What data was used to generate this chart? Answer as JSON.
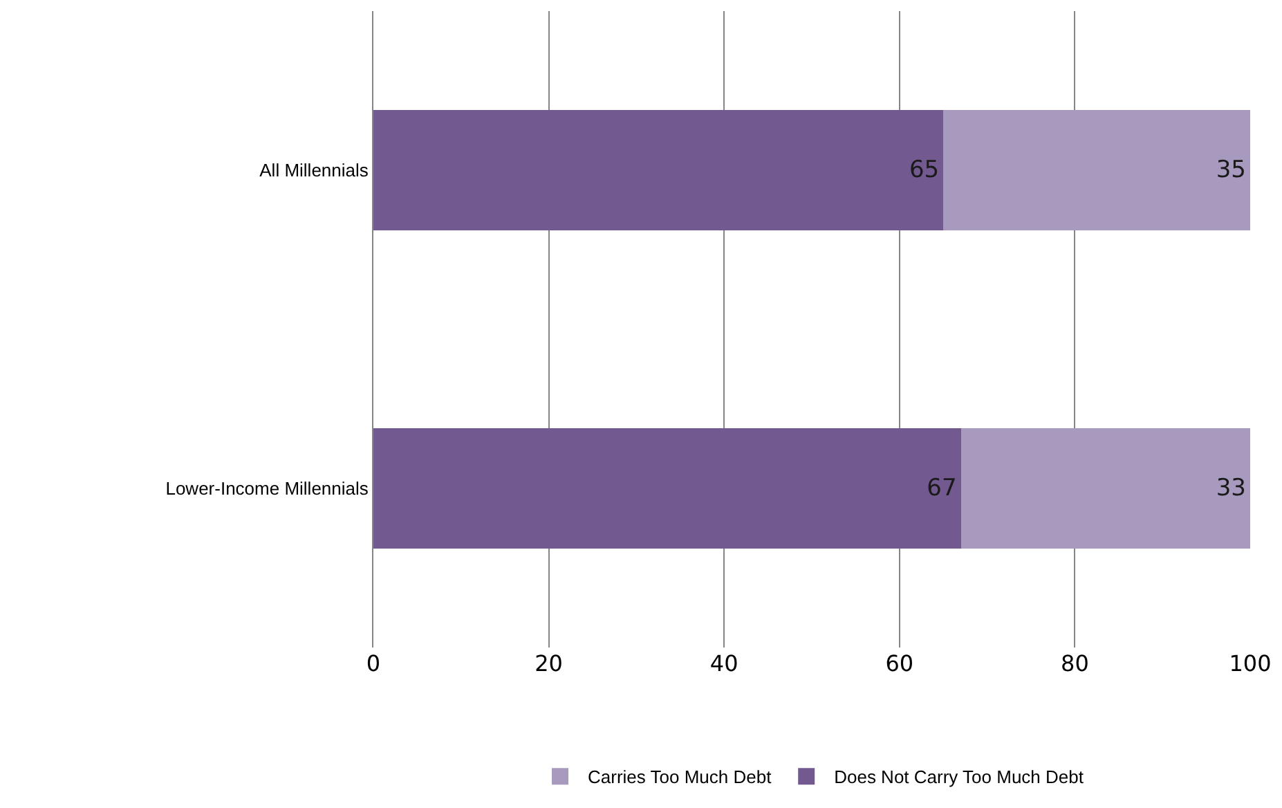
{
  "chart_data": {
    "type": "bar",
    "orientation": "horizontal",
    "stacked": true,
    "categories": [
      "All Millennials",
      "Lower-Income Millennials"
    ],
    "series": [
      {
        "name": "Does Not Carry Too Much Debt",
        "color": "#725a91",
        "values": [
          65,
          67
        ]
      },
      {
        "name": "Carries Too Much Debt",
        "color": "#a899be",
        "values": [
          35,
          33
        ]
      }
    ],
    "xlim": [
      0,
      100
    ],
    "xticks": [
      0,
      20,
      40,
      60,
      80,
      100
    ],
    "grid": "x",
    "legend": "bottom",
    "data_labels": true
  }
}
